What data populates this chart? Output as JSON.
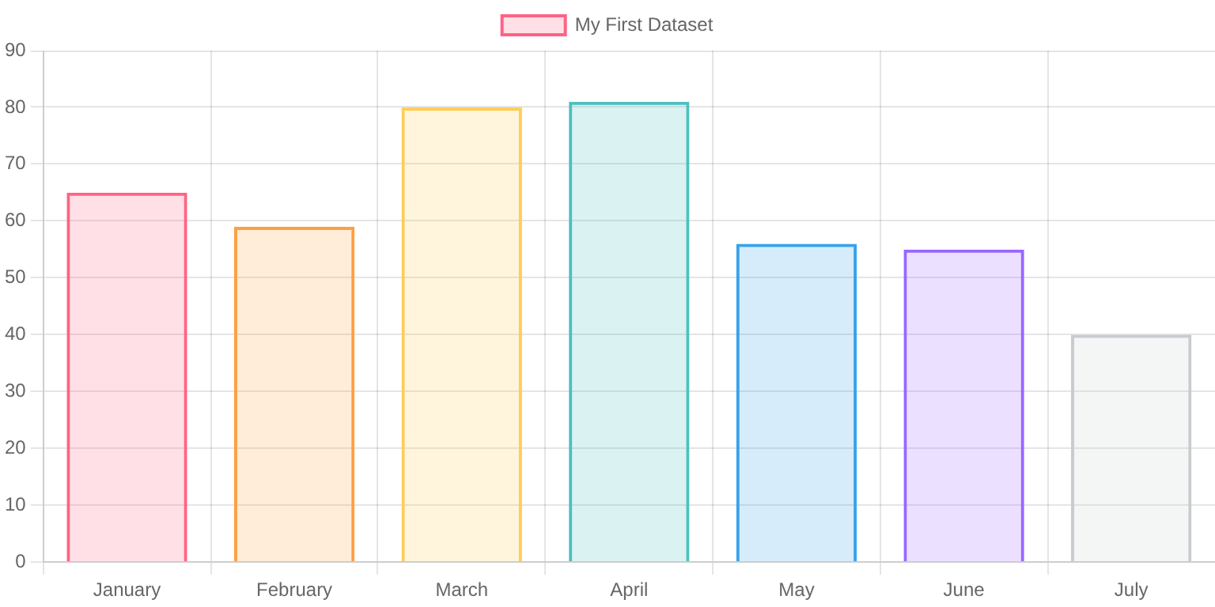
{
  "chart_data": {
    "type": "bar",
    "categories": [
      "January",
      "February",
      "March",
      "April",
      "May",
      "June",
      "July"
    ],
    "series": [
      {
        "name": "My First Dataset",
        "values": [
          65,
          59,
          80,
          81,
          56,
          55,
          40
        ],
        "colors": [
          "#ff6384",
          "#ff9f40",
          "#ffcd56",
          "#4bc0c0",
          "#36a2eb",
          "#9966ff",
          "#c9cbcf"
        ]
      }
    ],
    "ylim": [
      0,
      90
    ],
    "yticks": [
      0,
      10,
      20,
      30,
      40,
      50,
      60,
      70,
      80,
      90
    ],
    "grid": true,
    "legend": "top"
  }
}
